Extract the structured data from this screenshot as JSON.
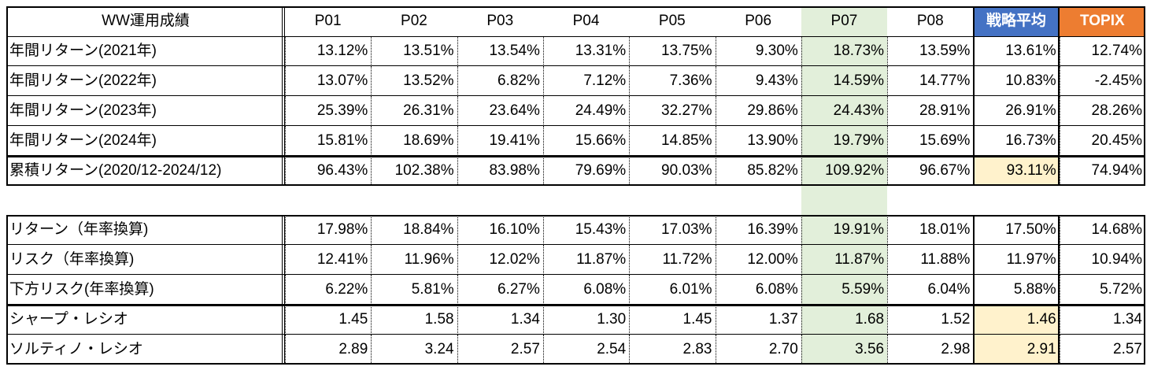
{
  "table1": {
    "header": [
      "WW運用成績",
      "P01",
      "P02",
      "P03",
      "P04",
      "P05",
      "P06",
      "P07",
      "P08",
      "戦略平均",
      "TOPIX"
    ],
    "rows": [
      [
        "年間リターン(2021年)",
        "13.12%",
        "13.51%",
        "13.54%",
        "13.31%",
        "13.75%",
        "9.30%",
        "18.73%",
        "13.59%",
        "13.61%",
        "12.74%"
      ],
      [
        "年間リターン(2022年)",
        "13.07%",
        "13.52%",
        "6.82%",
        "7.12%",
        "7.36%",
        "9.43%",
        "14.59%",
        "14.77%",
        "10.83%",
        "-2.45%"
      ],
      [
        "年間リターン(2023年)",
        "25.39%",
        "26.31%",
        "23.64%",
        "24.49%",
        "32.27%",
        "29.86%",
        "24.43%",
        "28.91%",
        "26.91%",
        "28.26%"
      ],
      [
        "年間リターン(2024年)",
        "15.81%",
        "18.69%",
        "19.41%",
        "15.66%",
        "14.85%",
        "13.90%",
        "19.79%",
        "15.69%",
        "16.73%",
        "20.45%"
      ],
      [
        "累積リターン(2020/12-2024/12)",
        "96.43%",
        "102.38%",
        "83.98%",
        "79.69%",
        "90.03%",
        "85.82%",
        "109.92%",
        "96.67%",
        "93.11%",
        "74.94%"
      ]
    ]
  },
  "table2": {
    "rows": [
      [
        "リターン（年率換算)",
        "17.98%",
        "18.84%",
        "16.10%",
        "15.43%",
        "17.03%",
        "16.39%",
        "19.91%",
        "18.01%",
        "17.50%",
        "14.68%"
      ],
      [
        "リスク（年率換算)",
        "12.41%",
        "11.96%",
        "12.02%",
        "11.87%",
        "11.72%",
        "12.00%",
        "11.87%",
        "11.88%",
        "11.97%",
        "10.94%"
      ],
      [
        "下方リスク(年率換算)",
        "6.22%",
        "5.81%",
        "6.27%",
        "6.08%",
        "6.01%",
        "6.08%",
        "5.59%",
        "6.04%",
        "5.88%",
        "5.72%"
      ],
      [
        "シャープ・レシオ",
        "1.45",
        "1.58",
        "1.34",
        "1.30",
        "1.45",
        "1.37",
        "1.68",
        "1.52",
        "1.46",
        "1.34"
      ],
      [
        "ソルティノ・レシオ",
        "2.89",
        "3.24",
        "2.57",
        "2.54",
        "2.83",
        "2.70",
        "3.56",
        "2.98",
        "2.91",
        "2.57"
      ]
    ]
  }
}
